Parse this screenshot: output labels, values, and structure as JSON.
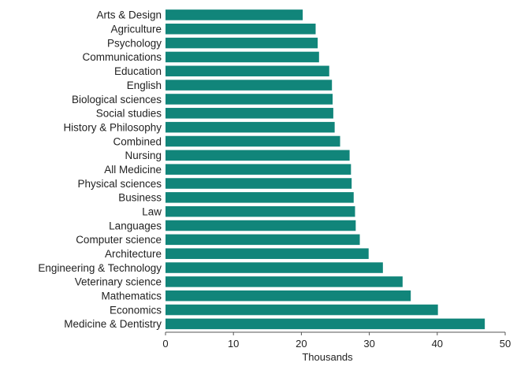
{
  "chart_data": {
    "type": "bar",
    "orientation": "horizontal",
    "categories": [
      "Arts & Design",
      "Agriculture",
      "Psychology",
      "Communications",
      "Education",
      "English",
      "Biological sciences",
      "Social studies",
      "History & Philosophy",
      "Combined",
      "Nursing",
      "All Medicine",
      "Physical sciences",
      "Business",
      "Law",
      "Languages",
      "Computer science",
      "Architecture",
      "Engineering & Technology",
      "Veterinary science",
      "Mathematics",
      "Economics",
      "Medicine & Dentistry"
    ],
    "values": [
      20.2,
      22.1,
      22.4,
      22.6,
      24.1,
      24.5,
      24.6,
      24.7,
      24.9,
      25.7,
      27.1,
      27.3,
      27.4,
      27.7,
      27.9,
      28.0,
      28.6,
      29.9,
      32.0,
      34.9,
      36.1,
      40.1,
      47.0
    ],
    "xlabel": "Thousands",
    "ylabel": "",
    "xlim": [
      0,
      50
    ],
    "xticks": [
      0,
      10,
      20,
      30,
      40,
      50
    ],
    "bar_color": "#11857a",
    "grid": false,
    "legend": "none"
  }
}
